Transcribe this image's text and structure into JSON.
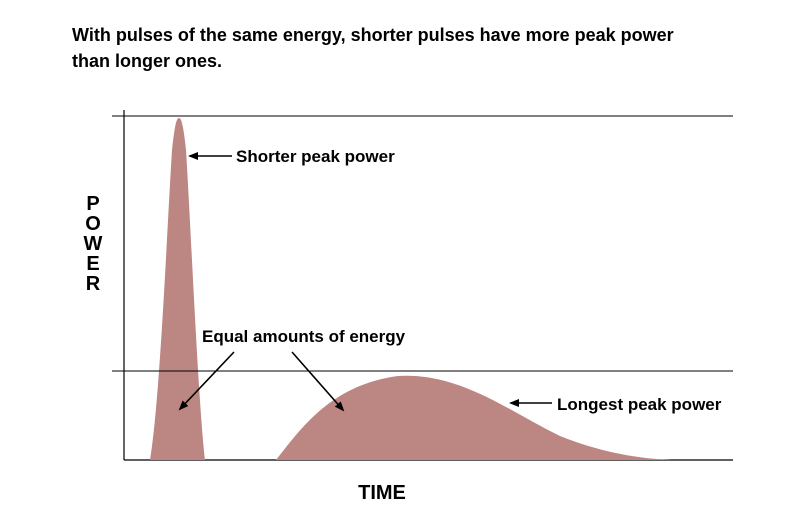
{
  "title": "With pulses of the same energy, shorter pulses have more peak power than longer ones.",
  "axes": {
    "y_label": "POWER",
    "x_label": "TIME"
  },
  "annotations": {
    "short_pulse": "Shorter peak power",
    "long_pulse": "Longest peak power",
    "equal_energy": "Equal amounts of energy"
  },
  "colors": {
    "pulse_fill": "#bc8683",
    "axis_line": "#000000"
  }
}
